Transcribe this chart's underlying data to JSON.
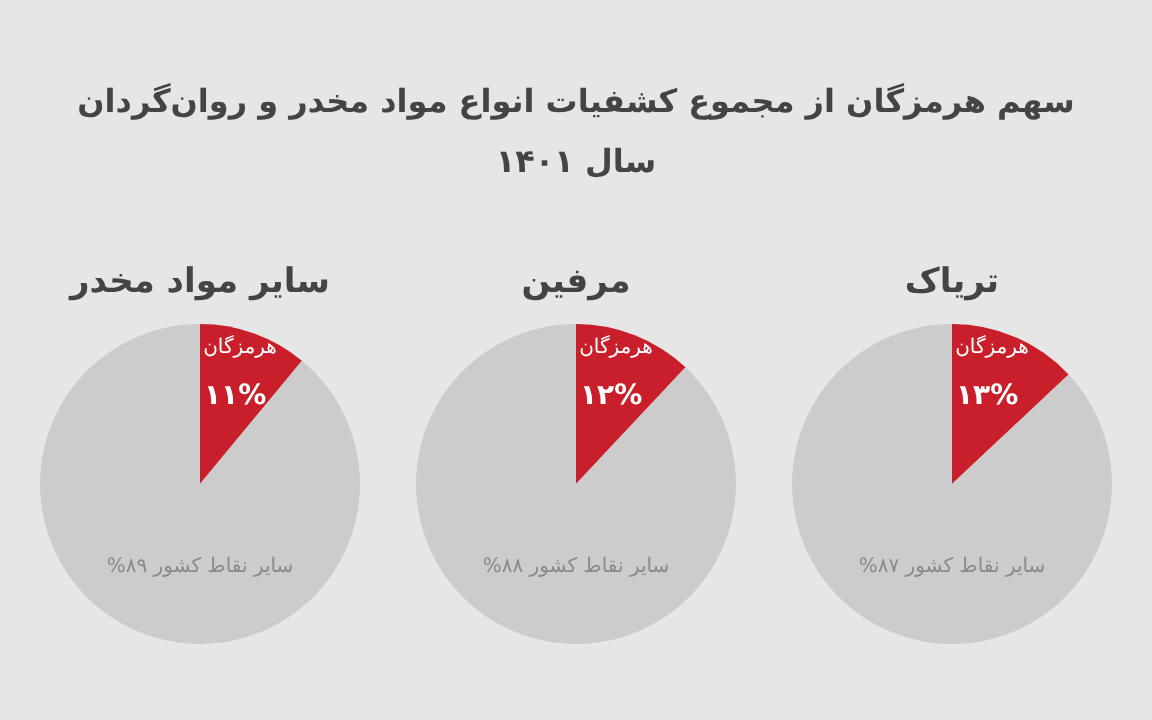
{
  "chart_data": [
    {
      "type": "pie",
      "title": "سایر مواد مخدر",
      "categories": [
        "هرمزگان",
        "سایر نقاط کشور"
      ],
      "values": [
        11,
        89
      ],
      "colors": [
        "#c91f2a",
        "#cccccc"
      ],
      "value_labels": [
        "۱۱%",
        "۸۹%"
      ]
    },
    {
      "type": "pie",
      "title": "مرفین",
      "categories": [
        "هرمزگان",
        "سایر نقاط کشور"
      ],
      "values": [
        12,
        88
      ],
      "colors": [
        "#c91f2a",
        "#cccccc"
      ],
      "value_labels": [
        "۱۲%",
        "۸۸%"
      ]
    },
    {
      "type": "pie",
      "title": "تریاک",
      "categories": [
        "هرمزگان",
        "سایر نقاط کشور"
      ],
      "values": [
        13,
        87
      ],
      "colors": [
        "#c91f2a",
        "#cccccc"
      ],
      "value_labels": [
        "۱۳%",
        "۸۷%"
      ],
      "annotations": [
        "سهم هرمزگان از مجموع کشفیات انواع مواد مخدر و روان‌گردان",
        "سال ۱۴۰۱"
      ]
    }
  ]
}
